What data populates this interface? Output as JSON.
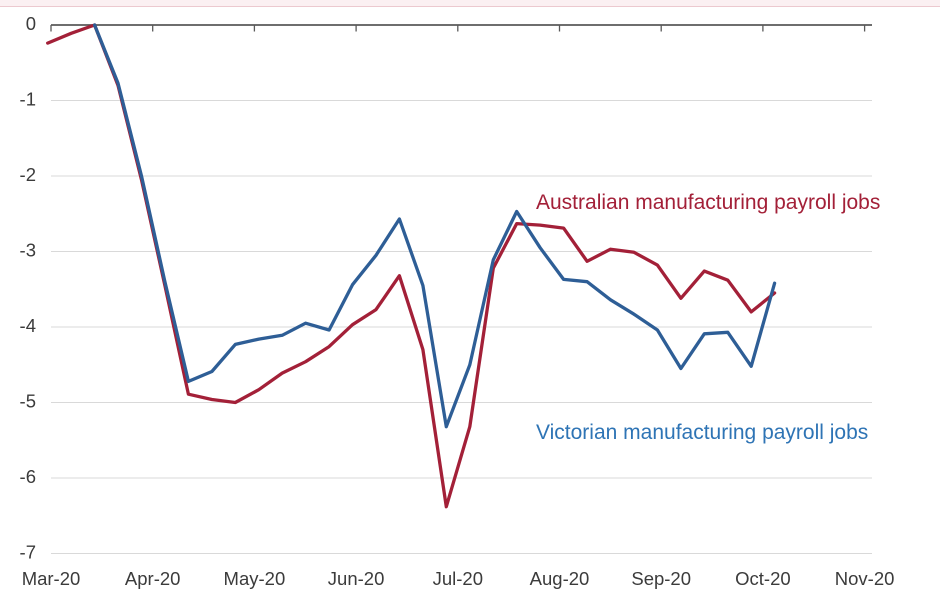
{
  "page": {
    "background": "#ffffff",
    "top_banner": {
      "fill": "#fbf0f2",
      "border": "#ecc9cf"
    }
  },
  "chart_data": {
    "type": "line",
    "title": "",
    "subtitle": "",
    "grid": true,
    "legend_position": "inline-annotations",
    "x_axis": {
      "tick_labels": [
        "Mar-20",
        "Apr-20",
        "May-20",
        "Jun-20",
        "Jul-20",
        "Aug-20",
        "Sep-20",
        "Oct-20",
        "Nov-20"
      ],
      "axis_position": "top (zero line)",
      "axis_color": "#595959",
      "tick_label_color": "#3b3b3b"
    },
    "y_axis": {
      "tick_labels": [
        "0",
        "-1",
        "-2",
        "-3",
        "-4",
        "-5",
        "-6",
        "-7"
      ],
      "tick_values": [
        0,
        -1,
        -2,
        -3,
        -4,
        -5,
        -6,
        -7
      ],
      "range": [
        -7,
        0
      ],
      "gridline_color": "#d9d9d9",
      "tick_label_color": "#3b3b3b"
    },
    "x_unit": "weekly observations (week index 1–32, Mar-20 to early Oct-20)",
    "series": [
      {
        "name": "Australian manufacturing payroll jobs",
        "color": "#a32038",
        "start_week": 1,
        "values": [
          -0.24,
          -0.11,
          0.0,
          -0.8,
          -2.05,
          -3.45,
          -4.89,
          -4.96,
          -5.0,
          -4.83,
          -4.61,
          -4.46,
          -4.26,
          -3.97,
          -3.77,
          -3.32,
          -4.3,
          -6.38,
          -5.32,
          -3.22,
          -2.63,
          -2.65,
          -2.69,
          -3.13,
          -2.97,
          -3.01,
          -3.18,
          -3.62,
          -3.26,
          -3.38,
          -3.8,
          -3.55
        ]
      },
      {
        "name": "Victorian manufacturing payroll jobs",
        "color": "#2e5e96",
        "start_week": 3,
        "values": [
          0.0,
          -0.77,
          -2.0,
          -3.4,
          -4.72,
          -4.59,
          -4.23,
          -4.16,
          -4.11,
          -3.95,
          -4.04,
          -3.44,
          -3.05,
          -2.57,
          -3.45,
          -5.32,
          -4.5,
          -3.11,
          -2.47,
          -2.95,
          -3.37,
          -3.4,
          -3.64,
          -3.83,
          -4.04,
          -4.55,
          -4.09,
          -4.07,
          -4.52,
          -3.42
        ]
      }
    ],
    "annotations": [
      {
        "text": "Australian manufacturing payroll jobs",
        "color": "#a32038",
        "x": 536,
        "y": 209
      },
      {
        "text": "Victorian manufacturing payroll jobs",
        "color": "#2e74b5",
        "x": 536,
        "y": 439
      }
    ]
  }
}
